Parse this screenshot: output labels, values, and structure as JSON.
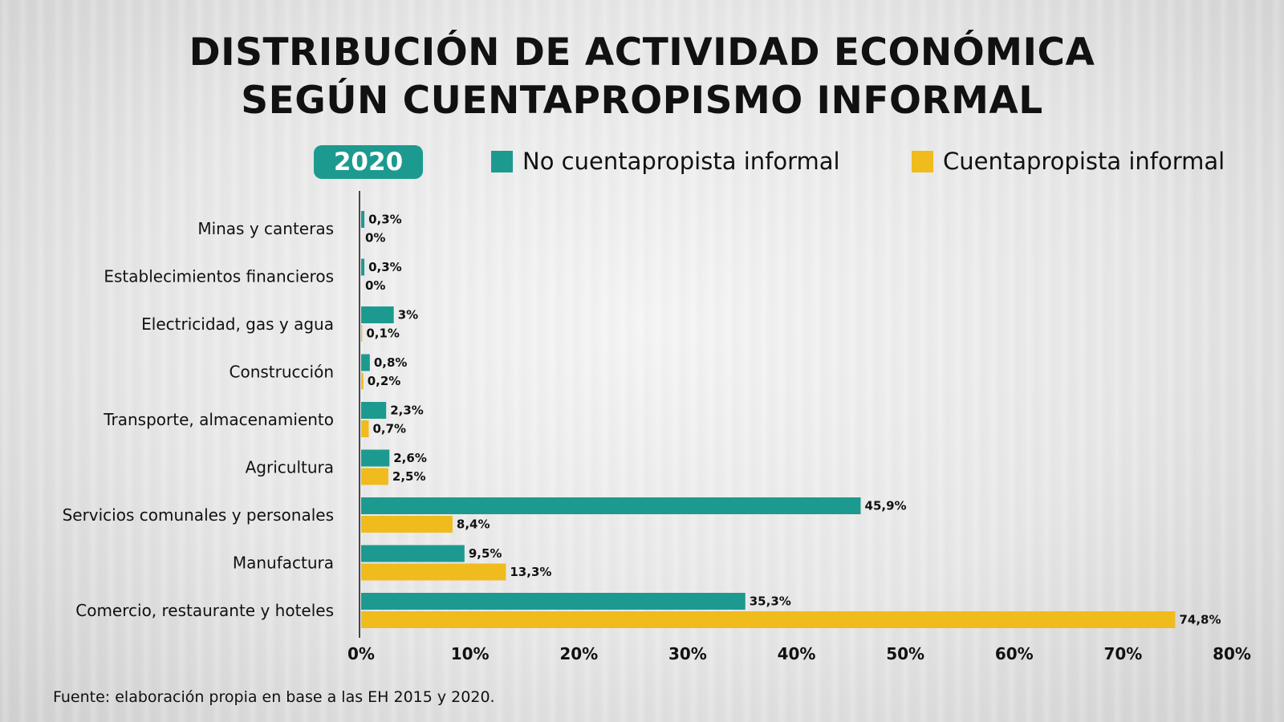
{
  "title_line1": "DISTRIBUCIÓN DE ACTIVIDAD ECONÓMICA",
  "title_line2": "SEGÚN CUENTAPROPISMO INFORMAL",
  "year": "2020",
  "source": "Fuente: elaboración propia en base a las EH 2015 y 2020.",
  "colors": {
    "teal": "#1d9a8f",
    "yellow": "#f0bb1c"
  },
  "chart_data": {
    "type": "bar",
    "orientation": "horizontal",
    "categories": [
      "Minas y canteras",
      "Establecimientos financieros",
      "Electricidad, gas y agua",
      "Construcción",
      "Transporte, almacenamiento",
      "Agricultura",
      "Servicios comunales y personales",
      "Manufactura",
      "Comercio, restaurante y hoteles"
    ],
    "series": [
      {
        "name": "No cuentapropista informal",
        "color": "#1d9a8f",
        "values": [
          0.3,
          0.3,
          3,
          0.8,
          2.3,
          2.6,
          45.9,
          9.5,
          35.3
        ],
        "labels": [
          "0,3%",
          "0,3%",
          "3%",
          "0,8%",
          "2,3%",
          "2,6%",
          "45,9%",
          "9,5%",
          "35,3%"
        ]
      },
      {
        "name": "Cuentapropista informal",
        "color": "#f0bb1c",
        "values": [
          0,
          0,
          0.1,
          0.2,
          0.7,
          2.5,
          8.4,
          13.3,
          74.8
        ],
        "labels": [
          "0%",
          "0%",
          "0,1%",
          "0,2%",
          "0,7%",
          "2,5%",
          "8,4%",
          "13,3%",
          "74,8%"
        ]
      }
    ],
    "xlim": [
      0,
      80
    ],
    "xticks": [
      "0%",
      "10%",
      "20%",
      "30%",
      "40%",
      "50%",
      "60%",
      "70%",
      "80%"
    ],
    "legend_position": "top",
    "grid": false
  }
}
